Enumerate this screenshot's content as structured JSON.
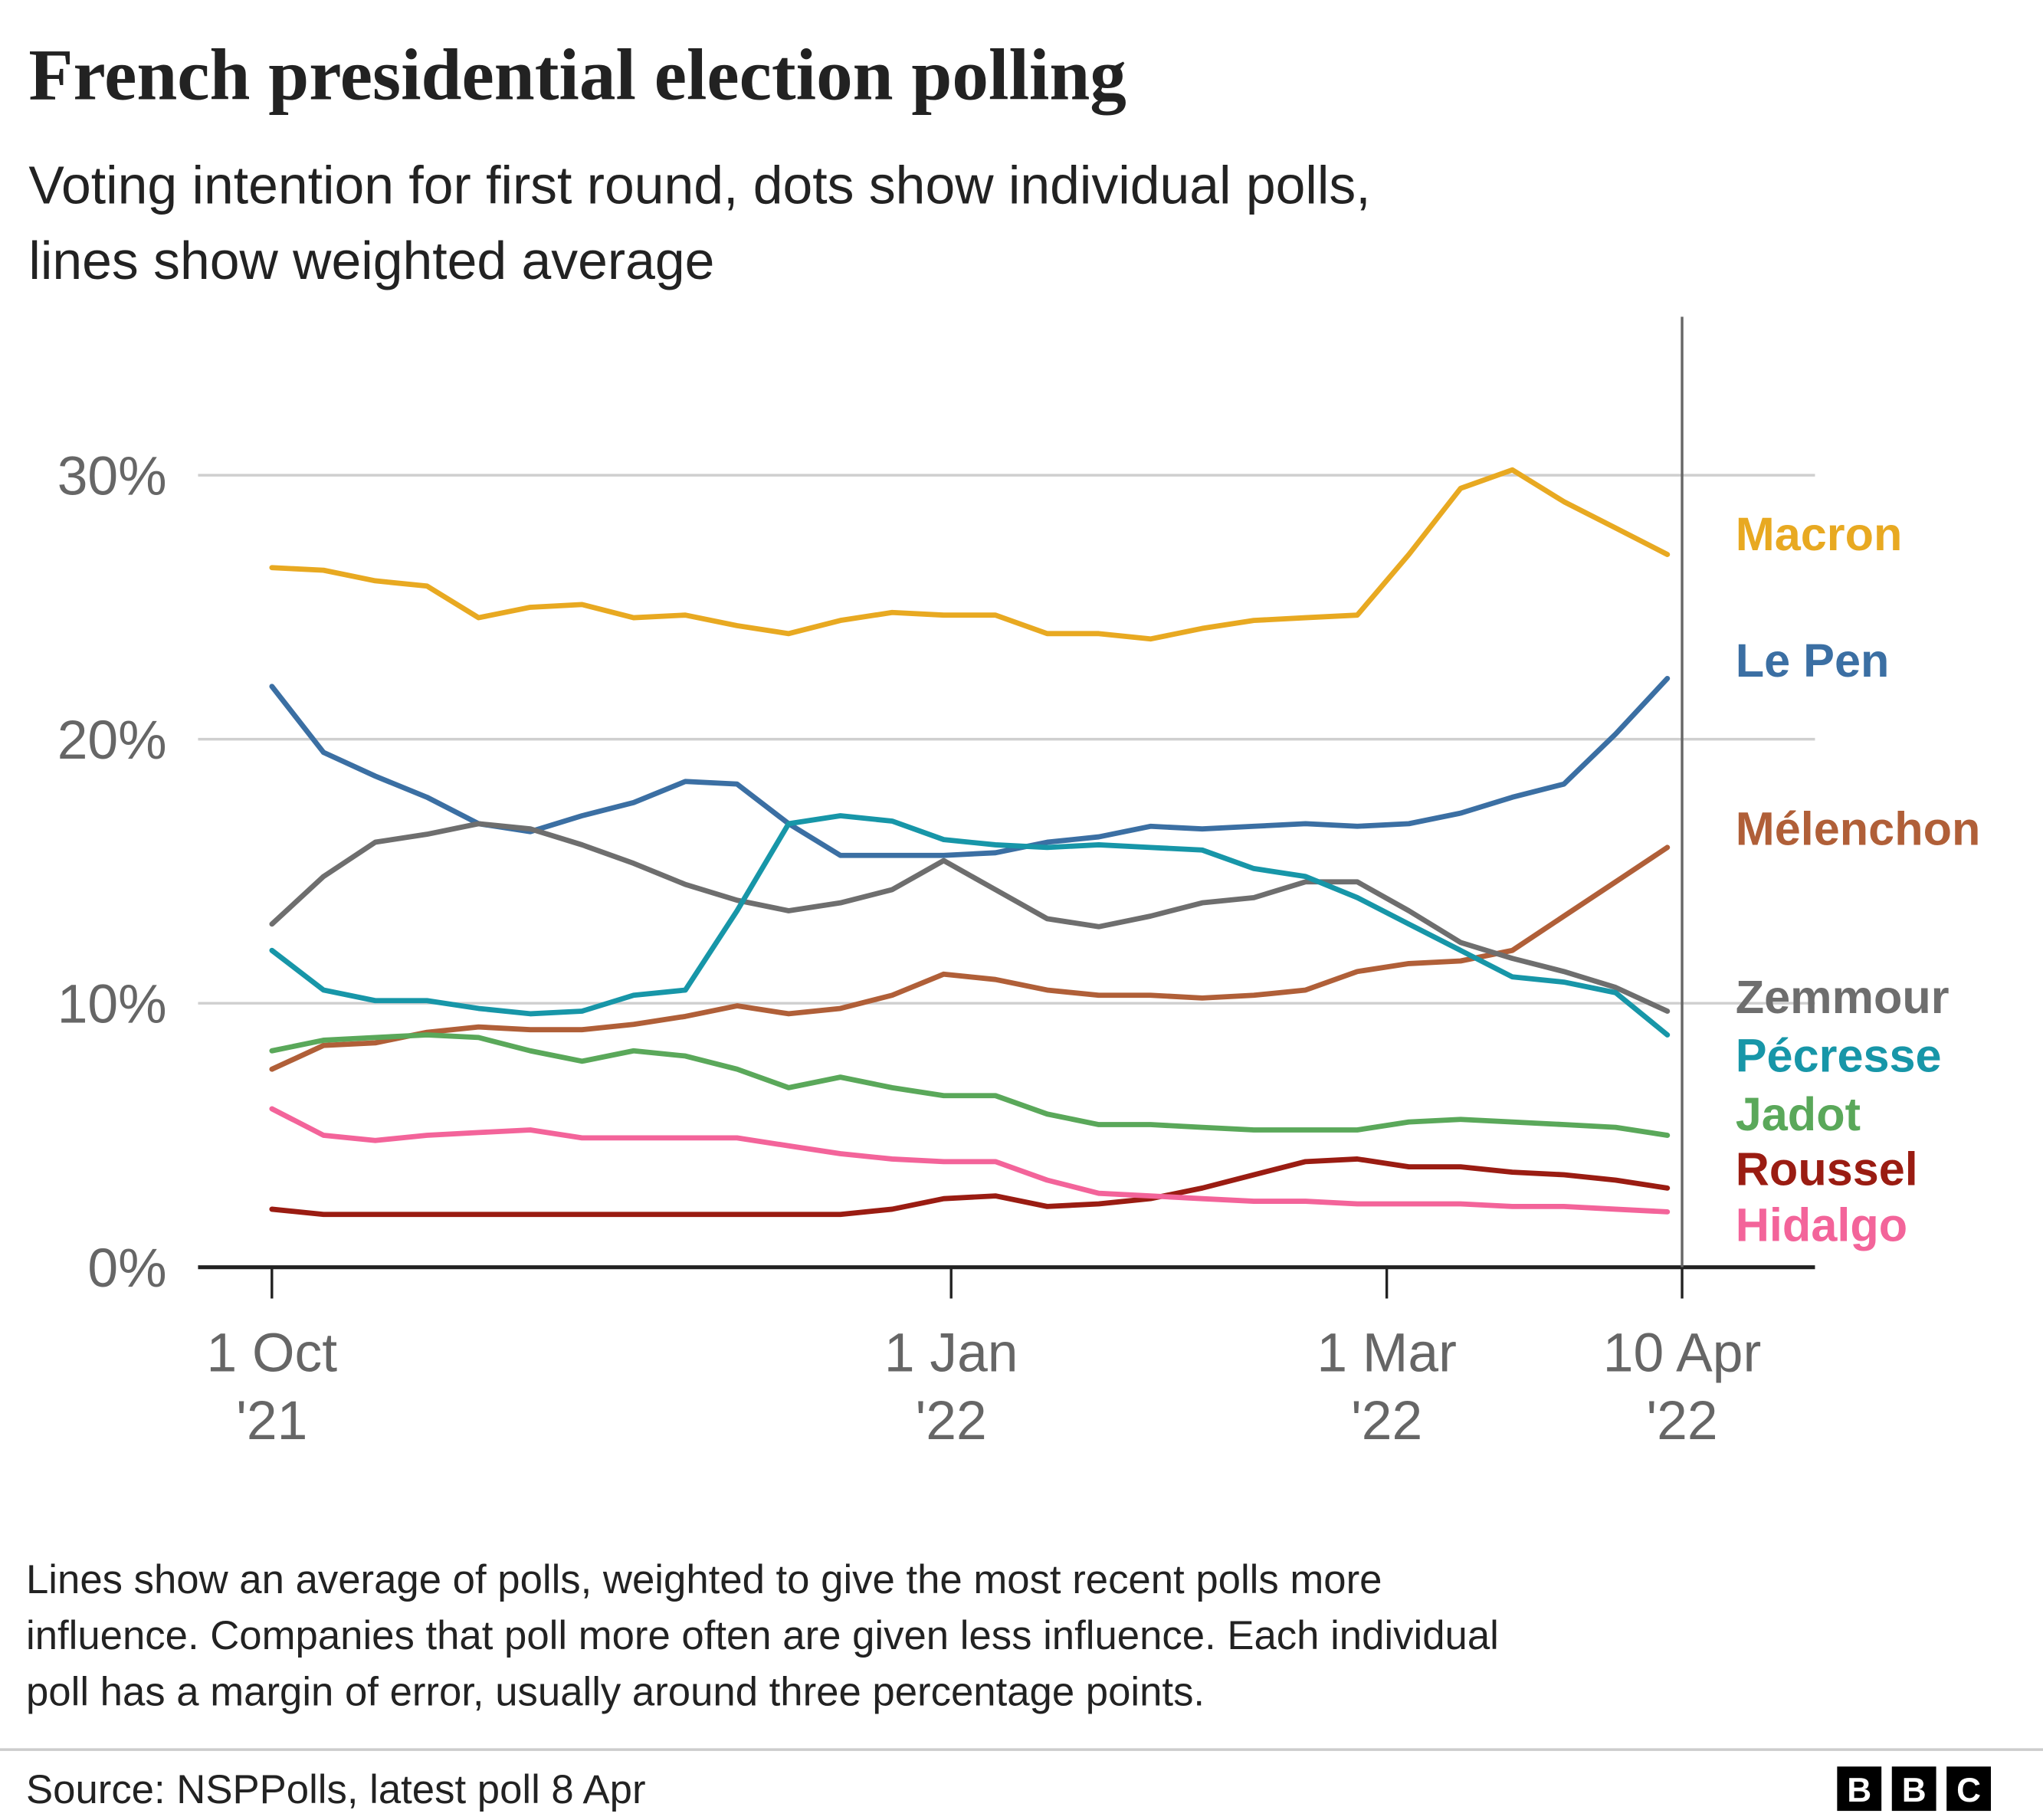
{
  "chart_data": {
    "type": "line",
    "title": "French presidential election polling",
    "subtitle": [
      "Voting intention for first round, dots show individual polls,",
      "lines show weighted average"
    ],
    "x": [
      "2021-10-01",
      "2021-10-08",
      "2021-10-15",
      "2021-10-22",
      "2021-10-29",
      "2021-11-05",
      "2021-11-12",
      "2021-11-19",
      "2021-11-26",
      "2021-12-03",
      "2021-12-10",
      "2021-12-17",
      "2021-12-24",
      "2021-12-31",
      "2022-01-07",
      "2022-01-14",
      "2022-01-21",
      "2022-01-28",
      "2022-02-04",
      "2022-02-11",
      "2022-02-18",
      "2022-02-25",
      "2022-03-04",
      "2022-03-11",
      "2022-03-18",
      "2022-03-25",
      "2022-04-01",
      "2022-04-08"
    ],
    "series": [
      {
        "name": "Macron",
        "color": "#e8a921",
        "values": [
          26.5,
          26.4,
          26.0,
          25.8,
          24.6,
          25.0,
          25.1,
          24.6,
          24.7,
          24.3,
          24.0,
          24.5,
          24.8,
          24.7,
          24.7,
          24.0,
          24.0,
          23.8,
          24.2,
          24.5,
          24.6,
          24.7,
          27.0,
          29.5,
          30.2,
          29.0,
          28.0,
          27.0
        ]
      },
      {
        "name": "Le Pen",
        "color": "#3b6fa3",
        "values": [
          22.0,
          19.5,
          18.6,
          17.8,
          16.8,
          16.5,
          17.1,
          17.6,
          18.4,
          18.3,
          16.8,
          15.6,
          15.6,
          15.6,
          15.7,
          16.1,
          16.3,
          16.7,
          16.6,
          16.7,
          16.8,
          16.7,
          16.8,
          17.2,
          17.8,
          18.3,
          20.2,
          22.3
        ]
      },
      {
        "name": "Mélenchon",
        "color": "#b05f38",
        "values": [
          7.5,
          8.4,
          8.5,
          8.9,
          9.1,
          9.0,
          9.0,
          9.2,
          9.5,
          9.9,
          9.6,
          9.8,
          10.3,
          11.1,
          10.9,
          10.5,
          10.3,
          10.3,
          10.2,
          10.3,
          10.5,
          11.2,
          11.5,
          11.6,
          12.0,
          13.3,
          14.6,
          15.9
        ]
      },
      {
        "name": "Zemmour",
        "color": "#6e6e6e",
        "values": [
          13.0,
          14.8,
          16.1,
          16.4,
          16.8,
          16.6,
          16.0,
          15.3,
          14.5,
          13.9,
          13.5,
          13.8,
          14.3,
          15.4,
          14.3,
          13.2,
          12.9,
          13.3,
          13.8,
          14.0,
          14.6,
          14.6,
          13.5,
          12.3,
          11.7,
          11.2,
          10.6,
          9.7
        ]
      },
      {
        "name": "Pécresse",
        "color": "#1796a8",
        "values": [
          12.0,
          10.5,
          10.1,
          10.1,
          9.8,
          9.6,
          9.7,
          10.3,
          10.5,
          13.5,
          16.8,
          17.1,
          16.9,
          16.2,
          16.0,
          15.9,
          16.0,
          15.9,
          15.8,
          15.1,
          14.8,
          14.0,
          13.0,
          12.0,
          11.0,
          10.8,
          10.4,
          8.8
        ]
      },
      {
        "name": "Jadot",
        "color": "#5aa85a",
        "values": [
          8.2,
          8.6,
          8.7,
          8.8,
          8.7,
          8.2,
          7.8,
          8.2,
          8.0,
          7.5,
          6.8,
          7.2,
          6.8,
          6.5,
          6.5,
          5.8,
          5.4,
          5.4,
          5.3,
          5.2,
          5.2,
          5.2,
          5.5,
          5.6,
          5.5,
          5.4,
          5.3,
          5.0
        ]
      },
      {
        "name": "Roussel",
        "color": "#9a1c12",
        "values": [
          2.2,
          2.0,
          2.0,
          2.0,
          2.0,
          2.0,
          2.0,
          2.0,
          2.0,
          2.0,
          2.0,
          2.0,
          2.2,
          2.6,
          2.7,
          2.3,
          2.4,
          2.6,
          3.0,
          3.5,
          4.0,
          4.1,
          3.8,
          3.8,
          3.6,
          3.5,
          3.3,
          3.0
        ]
      },
      {
        "name": "Hidalgo",
        "color": "#f3649a",
        "values": [
          6.0,
          5.0,
          4.8,
          5.0,
          5.1,
          5.2,
          4.9,
          4.9,
          4.9,
          4.9,
          4.6,
          4.3,
          4.1,
          4.0,
          4.0,
          3.3,
          2.8,
          2.7,
          2.6,
          2.5,
          2.5,
          2.4,
          2.4,
          2.4,
          2.3,
          2.3,
          2.2,
          2.1
        ]
      }
    ],
    "xlim": [
      "2021-09-21",
      "2022-04-28"
    ],
    "xticks": [
      {
        "value": "2021-10-01",
        "label": [
          "1 Oct",
          "'21"
        ]
      },
      {
        "value": "2022-01-01",
        "label": [
          "1 Jan",
          "'22"
        ]
      },
      {
        "value": "2022-03-01",
        "label": [
          "1 Mar",
          "'22"
        ]
      },
      {
        "value": "2022-04-10",
        "label": [
          "10 Apr",
          "'22"
        ]
      }
    ],
    "ylim": [
      0,
      36
    ],
    "yticks": [
      {
        "value": 0,
        "label": "0%"
      },
      {
        "value": 10,
        "label": "10%"
      },
      {
        "value": 20,
        "label": "20%"
      },
      {
        "value": 30,
        "label": "30%"
      }
    ],
    "grid": true,
    "note": [
      "Lines show an average of polls, weighted to give the most recent polls more",
      "influence. Companies that poll more often are given less influence. Each individual",
      "poll has a margin of error, usually around three percentage points."
    ],
    "source": "Source: NSPPolls, latest poll  8 Apr",
    "logo": [
      "B",
      "B",
      "C"
    ]
  }
}
